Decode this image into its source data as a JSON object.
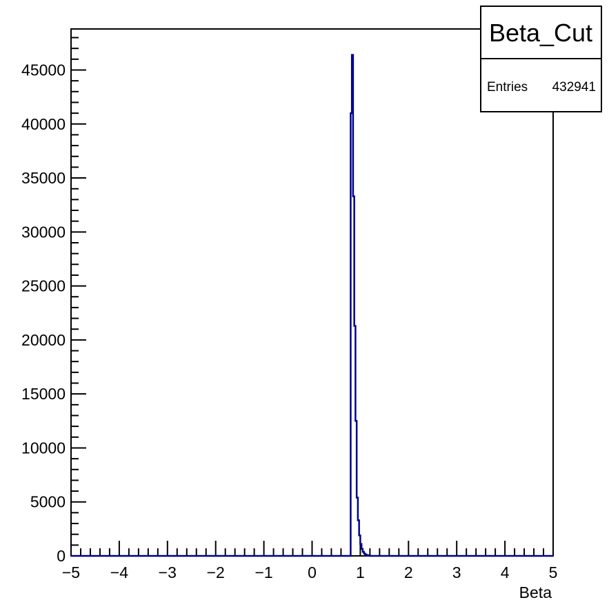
{
  "chart_data": {
    "type": "histogram",
    "title": "",
    "xlabel": "Beta",
    "ylabel": "",
    "xlim": [
      -5,
      5
    ],
    "ylim": [
      0,
      48800
    ],
    "x_ticks": [
      -5,
      -4,
      -3,
      -2,
      -1,
      0,
      1,
      2,
      3,
      4,
      5
    ],
    "y_ticks": [
      0,
      5000,
      10000,
      15000,
      20000,
      25000,
      30000,
      35000,
      40000,
      45000
    ],
    "x_tick_labels": [
      "−5",
      "−4",
      "−3",
      "−2",
      "−1",
      "0",
      "1",
      "2",
      "3",
      "4",
      "5"
    ],
    "y_tick_labels": [
      "0",
      "5000",
      "10000",
      "15000",
      "20000",
      "25000",
      "30000",
      "35000",
      "40000",
      "45000"
    ],
    "bin_width": 0.025,
    "series": [
      {
        "name": "Beta_Cut",
        "color": "#00008b",
        "bins": [
          {
            "x0": 0.8,
            "value": 41000
          },
          {
            "x0": 0.825,
            "value": 46400
          },
          {
            "x0": 0.85,
            "value": 33300
          },
          {
            "x0": 0.875,
            "value": 21300
          },
          {
            "x0": 0.9,
            "value": 12500
          },
          {
            "x0": 0.925,
            "value": 5400
          },
          {
            "x0": 0.95,
            "value": 3300
          },
          {
            "x0": 0.975,
            "value": 1900
          },
          {
            "x0": 1.0,
            "value": 1100
          },
          {
            "x0": 1.025,
            "value": 650
          },
          {
            "x0": 1.05,
            "value": 380
          },
          {
            "x0": 1.075,
            "value": 220
          },
          {
            "x0": 1.1,
            "value": 130
          },
          {
            "x0": 1.125,
            "value": 80
          },
          {
            "x0": 1.15,
            "value": 50
          },
          {
            "x0": 1.175,
            "value": 30
          }
        ]
      }
    ],
    "grid": false,
    "legend_position": "top-right"
  },
  "stats_box": {
    "title": "Beta_Cut",
    "entries_label": "Entries",
    "entries_value": "432941"
  }
}
